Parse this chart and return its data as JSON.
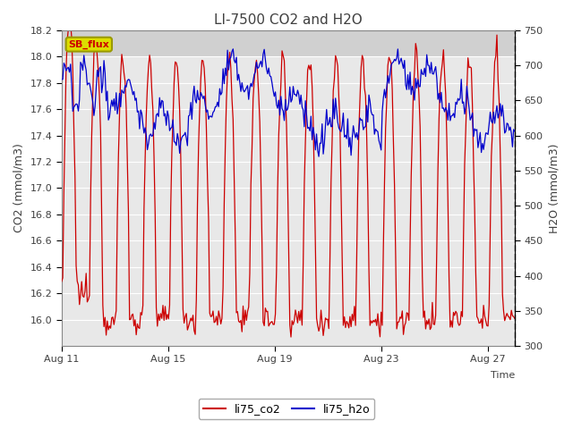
{
  "title": "LI-7500 CO2 and H2O",
  "ylabel_left": "CO2 (mmol/m3)",
  "ylabel_right": "H2O (mmol/m3)",
  "xlabel_right": "Time",
  "ylim_left": [
    15.8,
    18.2
  ],
  "ylim_right": [
    300,
    750
  ],
  "yticks_left": [
    16.0,
    16.2,
    16.4,
    16.6,
    16.8,
    17.0,
    17.2,
    17.4,
    17.6,
    17.8,
    18.0,
    18.2
  ],
  "yticks_right": [
    300,
    350,
    400,
    450,
    500,
    550,
    600,
    650,
    700,
    750
  ],
  "xtick_labels": [
    "Aug 11",
    "Aug 15",
    "Aug 19",
    "Aug 23",
    "Aug 27"
  ],
  "legend_label_co2": "li75_co2",
  "legend_label_h2o": "li75_h2o",
  "co2_color": "#cc0000",
  "h2o_color": "#0000cc",
  "watermark_text": "SB_flux",
  "watermark_color": "#cc0000",
  "watermark_bg": "#dddd00",
  "watermark_edge": "#999900",
  "fig_bg": "#ffffff",
  "plot_bg_dark": "#d0d0d0",
  "plot_bg_light": "#e8e8e8",
  "grid_color": "#ffffff",
  "title_color": "#404040",
  "label_color": "#404040",
  "tick_color": "#404040"
}
